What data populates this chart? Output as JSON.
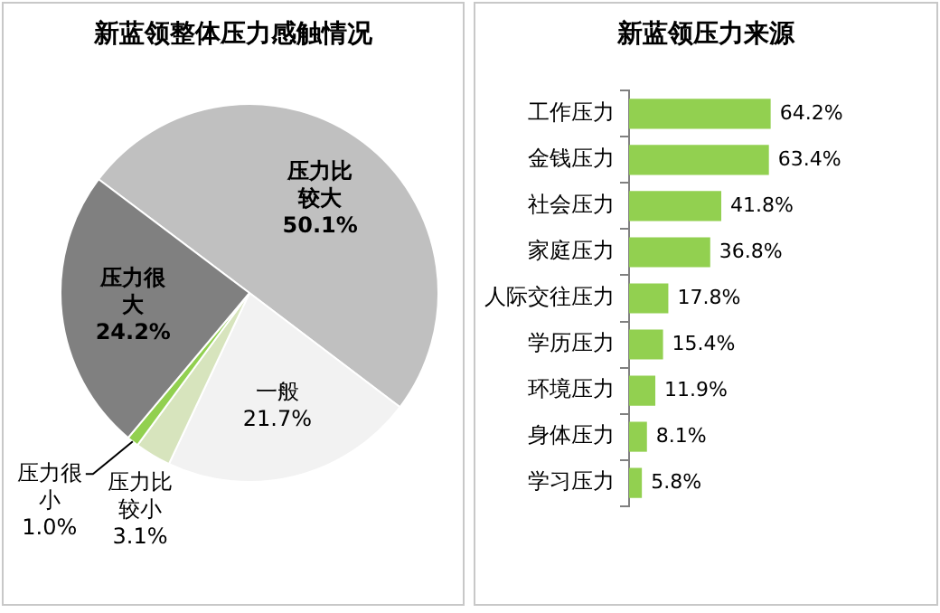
{
  "chart_data": [
    {
      "type": "pie",
      "title": "新蓝领整体压力感触情况",
      "categories": [
        "压力比较大",
        "一般",
        "压力比较小",
        "压力很小",
        "压力很大"
      ],
      "values": [
        50.1,
        21.7,
        3.1,
        1.0,
        24.2
      ],
      "colors": [
        "#c0c0c0",
        "#f2f2f2",
        "#d7e4bd",
        "#92d050",
        "#808080"
      ],
      "value_labels": [
        "50.1%",
        "21.7%",
        "3.1%",
        "1.0%",
        "24.2%"
      ]
    },
    {
      "type": "bar",
      "orientation": "horizontal",
      "title": "新蓝领压力来源",
      "categories": [
        "工作压力",
        "金钱压力",
        "社会压力",
        "家庭压力",
        "人际交往压力",
        "学历压力",
        "环境压力",
        "身体压力",
        "学习压力"
      ],
      "values": [
        64.2,
        63.4,
        41.8,
        36.8,
        17.8,
        15.4,
        11.9,
        8.1,
        5.8
      ],
      "color": "#92d050",
      "value_labels": [
        "64.2%",
        "63.4%",
        "41.8%",
        "36.8%",
        "17.8%",
        "15.4%",
        "11.9%",
        "8.1%",
        "5.8%"
      ]
    }
  ]
}
